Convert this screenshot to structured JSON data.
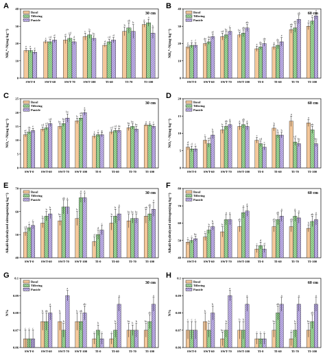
{
  "figure": {
    "legend": [
      "Basal",
      "Tillering",
      "Panicle"
    ],
    "colors": {
      "basal": "#f3c79a",
      "tillering": "#9fd89a",
      "panicle": "#c2b4e8",
      "frame": "#000000",
      "error": "#000000"
    }
  },
  "chart_data": [
    {
      "letter": "A",
      "depth": "30 cm",
      "type": "bar",
      "ylabel": "NH₄⁺-N(mg·kg⁻¹)",
      "ylim": [
        0,
        40
      ],
      "yticks": [
        0,
        10,
        20,
        30,
        40
      ],
      "categories": [
        "SWT-0",
        "SWT-60",
        "SWT-70",
        "SWT-100",
        "TI-60",
        "TI-70",
        "TI-100"
      ],
      "series": [
        {
          "name": "Basal",
          "values": [
            16,
            21,
            22,
            24,
            19,
            27,
            31
          ],
          "errors": [
            1.2,
            1.0,
            2.0,
            2.0,
            1.0,
            2.5,
            1.5
          ],
          "labels": [
            "e",
            "c",
            "d",
            "c",
            "d",
            "b",
            "a"
          ]
        },
        {
          "name": "Tillering",
          "values": [
            16,
            21,
            23,
            25,
            21,
            29,
            32
          ],
          "errors": [
            1.2,
            1.5,
            2.0,
            2.0,
            1.5,
            3.0,
            2.0
          ],
          "labels": [
            "e",
            "cd",
            "cd",
            "b",
            "cd",
            "ab",
            "a"
          ]
        },
        {
          "name": "Panicle",
          "values": [
            15,
            22,
            21,
            23,
            22,
            27,
            26
          ],
          "errors": [
            1.2,
            1.5,
            1.5,
            1.5,
            1.5,
            4.0,
            3.0
          ],
          "labels": [
            "e",
            "d",
            "d",
            "bc",
            "d",
            "b",
            "b"
          ]
        }
      ]
    },
    {
      "letter": "B",
      "depth": "60 cm",
      "type": "bar",
      "ylabel": "NH₄⁺-N(mg·kg⁻¹)",
      "ylim": [
        0,
        40
      ],
      "yticks": [
        0,
        10,
        20,
        30,
        40
      ],
      "categories": [
        "SWT-0",
        "SWT-60",
        "SWT-70",
        "SWT-100",
        "TI-0",
        "TI-60",
        "TI-70",
        "TI-100"
      ],
      "series": [
        {
          "name": "Basal",
          "values": [
            18,
            20,
            24,
            25,
            17,
            18,
            28,
            30
          ],
          "errors": [
            1.2,
            1.5,
            2.0,
            1.5,
            1.5,
            1.5,
            2.0,
            2.0
          ],
          "labels": [
            "e",
            "de",
            "cd",
            "bc",
            "e",
            "e",
            "ab",
            "a"
          ]
        },
        {
          "name": "Tillering",
          "values": [
            19,
            21,
            25,
            26,
            18,
            19,
            29,
            33
          ],
          "errors": [
            1.5,
            1.5,
            2.0,
            2.0,
            1.5,
            2.0,
            2.5,
            2.0
          ],
          "labels": [
            "e",
            "de",
            "bc",
            "ab",
            "de",
            "de",
            "ab",
            "a"
          ]
        },
        {
          "name": "Panicle",
          "values": [
            19,
            24,
            27,
            29,
            20,
            21,
            34,
            36
          ],
          "errors": [
            1.5,
            1.5,
            2.0,
            2.0,
            1.5,
            2.5,
            2.5,
            2.0
          ],
          "labels": [
            "f",
            "ef",
            "c",
            "ab",
            "de",
            "e",
            "ab",
            "a"
          ]
        }
      ]
    },
    {
      "letter": "C",
      "depth": "30 cm",
      "type": "bar",
      "ylabel": "NO₃⁻-N(mg·kg⁻¹)",
      "ylim": [
        0,
        25
      ],
      "yticks": [
        0,
        5,
        10,
        15,
        20,
        25
      ],
      "categories": [
        "SWT-0",
        "SWT-60",
        "SWT-70",
        "SWT-100",
        "TI-0",
        "TI-60",
        "TI-70",
        "TI-100"
      ],
      "series": [
        {
          "name": "Basal",
          "values": [
            12,
            14,
            15,
            17,
            11.5,
            13,
            14.5,
            15.5
          ],
          "errors": [
            0.8,
            0.8,
            1.0,
            1.0,
            0.8,
            0.8,
            1.0,
            0.5
          ],
          "labels": [
            "ef",
            "cd",
            "bc",
            "b",
            "f",
            "cd",
            "bc",
            "a"
          ]
        },
        {
          "name": "Tillering",
          "values": [
            13,
            14.5,
            16,
            18,
            12,
            13.5,
            15,
            15.5
          ],
          "errors": [
            0.8,
            0.8,
            1.0,
            1.0,
            0.8,
            0.8,
            1.0,
            0.5
          ],
          "labels": [
            "de",
            "cd",
            "bc",
            "ab",
            "f",
            "cd",
            "bc",
            "a"
          ]
        },
        {
          "name": "Panicle",
          "values": [
            13.5,
            16,
            18,
            20,
            12,
            13.5,
            14,
            15
          ],
          "errors": [
            0.8,
            1.0,
            1.5,
            1.0,
            0.8,
            0.8,
            1.0,
            0.8
          ],
          "labels": [
            "e",
            "cd",
            "bc",
            "a",
            "g",
            "de",
            "bc",
            "c"
          ]
        }
      ]
    },
    {
      "letter": "D",
      "depth": "60 cm",
      "type": "bar",
      "ylabel": "NO₃⁻-N(mg·kg⁻¹)",
      "ylim": [
        0,
        20
      ],
      "yticks": [
        0,
        5,
        10,
        15,
        20
      ],
      "categories": [
        "SWT-0",
        "SWT-60",
        "SWT-70",
        "SWT-100",
        "TI-0",
        "TI-60",
        "TI-70",
        "TI-100"
      ],
      "series": [
        {
          "name": "Basal",
          "values": [
            6,
            8,
            11,
            12,
            8,
            11.5,
            13.5,
            13
          ],
          "errors": [
            0.8,
            1.0,
            1.0,
            1.0,
            0.8,
            0.8,
            1.5,
            1.0
          ],
          "labels": [
            "d",
            "c",
            "b",
            "a",
            "c",
            "b",
            "a",
            "a"
          ]
        },
        {
          "name": "Tillering",
          "values": [
            5.5,
            7,
            12,
            12.5,
            7,
            9.5,
            7.5,
            11
          ],
          "errors": [
            0.8,
            1.0,
            1.0,
            1.0,
            0.8,
            0.8,
            1.0,
            1.0
          ],
          "labels": [
            "d",
            "cd",
            "ab",
            "ab",
            "cd",
            "b",
            "cd",
            "ab"
          ]
        },
        {
          "name": "Panicle",
          "values": [
            5.5,
            9.5,
            12.5,
            12,
            6,
            9.5,
            7,
            7
          ],
          "errors": [
            0.8,
            1.0,
            1.0,
            1.0,
            0.8,
            0.8,
            0.8,
            0.8
          ],
          "labels": [
            "c",
            "b",
            "a",
            "a",
            "c",
            "b",
            "bc",
            "bc"
          ]
        }
      ]
    },
    {
      "letter": "E",
      "depth": "30 cm",
      "type": "bar",
      "ylabel": "Alkali-hydrolyzed nitrogen(mg·kg⁻¹)",
      "ylim": [
        40,
        70
      ],
      "yticks": [
        40,
        50,
        60,
        70
      ],
      "categories": [
        "SWT-0",
        "SWT-60",
        "SWT-70",
        "SWT-100",
        "TI-0",
        "TI-60",
        "TI-70",
        "TI-100"
      ],
      "series": [
        {
          "name": "Basal",
          "values": [
            51,
            55,
            56,
            57,
            47,
            55,
            56,
            58
          ],
          "errors": [
            1.5,
            2.0,
            2.0,
            3.0,
            2.0,
            3.0,
            3.0,
            3.0
          ],
          "labels": [
            "cd",
            "b",
            "bc",
            "b",
            "d",
            "b",
            "bc",
            "ab"
          ]
        },
        {
          "name": "Tillering",
          "values": [
            53,
            58,
            62,
            66,
            50,
            58,
            57,
            59
          ],
          "errors": [
            1.5,
            2.0,
            3.0,
            2.0,
            2.0,
            3.0,
            2.0,
            3.0
          ],
          "labels": [
            "c",
            "b",
            "ab",
            "a",
            "d",
            "b",
            "bc",
            "ab"
          ]
        },
        {
          "name": "Panicle",
          "values": [
            54,
            59,
            62,
            66,
            52,
            59,
            57,
            61
          ],
          "errors": [
            1.5,
            2.0,
            3.0,
            2.0,
            2.0,
            3.0,
            2.0,
            3.0
          ],
          "labels": [
            "c",
            "b",
            "a",
            "a",
            "c",
            "a",
            "bc",
            "a"
          ]
        }
      ]
    },
    {
      "letter": "F",
      "depth": "60 cm",
      "type": "bar",
      "ylabel": "Alkali-hydrolyzed nitrogen(mg·kg⁻¹)",
      "ylim": [
        40,
        80
      ],
      "yticks": [
        40,
        50,
        60,
        70,
        80
      ],
      "categories": [
        "SWT-0",
        "SWT-60",
        "SWT-70",
        "SWT-100",
        "TI-0",
        "TI-60",
        "TI-70",
        "TI-100"
      ],
      "series": [
        {
          "name": "Basal",
          "values": [
            49,
            52,
            55,
            58,
            45,
            58,
            58,
            57
          ],
          "errors": [
            1.5,
            2.0,
            3.0,
            3.0,
            2.0,
            3.0,
            3.0,
            2.0
          ],
          "labels": [
            "c",
            "c",
            "b",
            "ab",
            "c",
            "ab",
            "ab",
            "b"
          ]
        },
        {
          "name": "Tillering",
          "values": [
            50,
            56,
            62,
            66,
            47,
            62,
            64,
            61
          ],
          "errors": [
            1.5,
            2.0,
            3.0,
            3.0,
            2.0,
            3.0,
            3.0,
            3.0
          ],
          "labels": [
            "c",
            "b",
            "a",
            "a",
            "d",
            "ab",
            "a",
            "ab"
          ]
        },
        {
          "name": "Panicle",
          "values": [
            51,
            58,
            62,
            67,
            45,
            64,
            63,
            62
          ],
          "errors": [
            1.5,
            2.0,
            3.0,
            3.0,
            2.0,
            3.0,
            3.0,
            3.0
          ],
          "labels": [
            "bc",
            "b",
            "a",
            "a",
            "d",
            "a",
            "a",
            "a"
          ]
        }
      ]
    },
    {
      "letter": "G",
      "depth": "30 cm",
      "type": "bar",
      "ylabel": "N%",
      "ylim": [
        0.06,
        0.1
      ],
      "yticks": [
        0.06,
        0.07,
        0.08,
        0.09,
        0.1
      ],
      "categories": [
        "SWT-0",
        "SWT-60",
        "SWT-70",
        "SWT-100",
        "TI-0",
        "TI-60",
        "TI-70",
        "TI-100"
      ],
      "series": [
        {
          "name": "Basal",
          "values": [
            0.065,
            0.075,
            0.075,
            0.075,
            0.065,
            0.065,
            0.07,
            0.07
          ],
          "errors": [
            0.005,
            0.005,
            0.005,
            0.005,
            0.003,
            0.003,
            0.004,
            0.004
          ],
          "labels": [
            "c",
            "b",
            "b",
            "b",
            "c",
            "c",
            "bc",
            "bc"
          ]
        },
        {
          "name": "Tillering",
          "values": [
            0.065,
            0.075,
            0.07,
            0.075,
            0.07,
            0.07,
            0.07,
            0.075
          ],
          "errors": [
            0.005,
            0.005,
            0.004,
            0.005,
            0.003,
            0.004,
            0.003,
            0.004
          ],
          "labels": [
            "c",
            "ab",
            "b",
            "ab",
            "b",
            "b",
            "b",
            "ab"
          ]
        },
        {
          "name": "Panicle",
          "values": [
            0.065,
            0.08,
            0.09,
            0.08,
            0.065,
            0.085,
            0.07,
            0.085
          ],
          "errors": [
            0.005,
            0.004,
            0.003,
            0.004,
            0.003,
            0.004,
            0.004,
            0.004
          ],
          "labels": [
            "c",
            "a",
            "a",
            "ab",
            "c",
            "a",
            "b",
            "a"
          ]
        }
      ]
    },
    {
      "letter": "H",
      "depth": "60 cm",
      "type": "bar",
      "ylabel": "N%",
      "ylim": [
        0.06,
        0.1
      ],
      "yticks": [
        0.06,
        0.07,
        0.08,
        0.09,
        0.1
      ],
      "categories": [
        "SWT-0",
        "SWT-60",
        "SWT-70",
        "SWT-100",
        "TI-0",
        "TI-60",
        "TI-70",
        "TI-100"
      ],
      "series": [
        {
          "name": "Basal",
          "values": [
            0.07,
            0.075,
            0.065,
            0.07,
            0.065,
            0.07,
            0.065,
            0.07
          ],
          "errors": [
            0.005,
            0.005,
            0.004,
            0.005,
            0.003,
            0.004,
            0.004,
            0.004
          ],
          "labels": [
            "c",
            "b",
            "bc",
            "b",
            "c",
            "bc",
            "c",
            "bc"
          ]
        },
        {
          "name": "Tillering",
          "values": [
            0.07,
            0.07,
            0.07,
            0.07,
            0.065,
            0.08,
            0.07,
            0.075
          ],
          "errors": [
            0.005,
            0.004,
            0.004,
            0.005,
            0.003,
            0.004,
            0.004,
            0.004
          ],
          "labels": [
            "c",
            "b",
            "b",
            "b",
            "c",
            "ab",
            "b",
            "ab"
          ]
        },
        {
          "name": "Panicle",
          "values": [
            0.07,
            0.08,
            0.09,
            0.085,
            0.065,
            0.085,
            0.085,
            0.085
          ],
          "errors": [
            0.005,
            0.004,
            0.003,
            0.004,
            0.003,
            0.004,
            0.004,
            0.004
          ],
          "labels": [
            "c",
            "b",
            "a",
            "a",
            "c",
            "a",
            "a",
            "a"
          ]
        }
      ]
    }
  ]
}
